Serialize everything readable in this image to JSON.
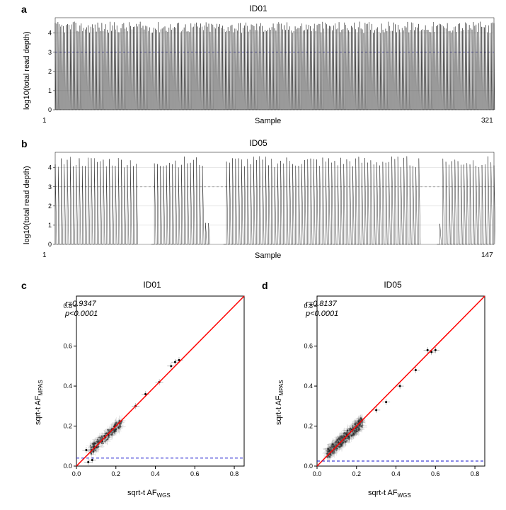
{
  "panel_a": {
    "label": "a",
    "title": "ID01",
    "ylabel": "log10(total read depth)",
    "xlabel": "Sample",
    "x_start": "1",
    "x_end": "321",
    "ylim": [
      0,
      4.8
    ],
    "yticks": [
      "0",
      "1",
      "2",
      "3",
      "4"
    ],
    "n_samples": 321,
    "hline_y": 3,
    "hline_color": "#4040c0",
    "hline_dash": "3,3",
    "line_color": "#000000",
    "grid_color": "#d0d0d0",
    "background_color": "#ffffff",
    "line_width": 0.4,
    "title_fontsize": 12,
    "label_fontsize": 11,
    "tick_fontsize": 10
  },
  "panel_b": {
    "label": "b",
    "title": "ID05",
    "ylabel": "log10(total read depth)",
    "xlabel": "Sample",
    "x_start": "1",
    "x_end": "147",
    "ylim": [
      0,
      4.8
    ],
    "yticks": [
      "0",
      "1",
      "2",
      "3",
      "4"
    ],
    "n_samples": 147,
    "hline_y": 3,
    "hline_color": "#808080",
    "hline_dash": "3,3",
    "line_color": "#000000",
    "grid_color": "#d0d0d0",
    "background_color": "#ffffff",
    "line_width": 0.4,
    "gaps": [
      [
        28,
        32
      ],
      [
        52,
        56
      ],
      [
        122,
        127
      ]
    ],
    "low_regions": [
      [
        50,
        54
      ],
      [
        123,
        128
      ]
    ]
  },
  "panel_c": {
    "label": "c",
    "title": "ID01",
    "xlabel": "sqrt-t AF",
    "xlabel_sub": "WGS",
    "ylabel": "sqrt-t AF",
    "ylabel_sub": "MPAS",
    "r_text": "r=0.9347",
    "p_text": "p<0.0001",
    "xlim": [
      0,
      0.85
    ],
    "ylim": [
      0,
      0.85
    ],
    "ticks": [
      "0.0",
      "0.2",
      "0.4",
      "0.6",
      "0.8"
    ],
    "diag_color": "#ff0000",
    "diag_width": 1.5,
    "hline_y": 0.04,
    "hline_color": "#2020d0",
    "hline_dash": "4,3",
    "hline_width": 1.2,
    "point_color": "#000000",
    "point_opacity": 0.5,
    "error_color": "#808080",
    "background_color": "#ffffff",
    "border_color": "#000000",
    "n_points": 180,
    "cluster_center": [
      0.15,
      0.15
    ],
    "cluster_spread": 0.08,
    "outliers": [
      [
        0.5,
        0.52
      ],
      [
        0.52,
        0.53
      ],
      [
        0.48,
        0.5
      ],
      [
        0.42,
        0.42
      ],
      [
        0.35,
        0.36
      ],
      [
        0.3,
        0.3
      ],
      [
        0.05,
        0.08
      ],
      [
        0.06,
        0.02
      ],
      [
        0.08,
        0.03
      ]
    ]
  },
  "panel_d": {
    "label": "d",
    "title": "ID05",
    "xlabel": "sqrt-t AF",
    "xlabel_sub": "WGS",
    "ylabel": "sqrt-t AF",
    "ylabel_sub": "MPAS",
    "r_text": "r=0.8137",
    "p_text": "p<0.0001",
    "xlim": [
      0,
      0.85
    ],
    "ylim": [
      0,
      0.85
    ],
    "ticks": [
      "0.0",
      "0.2",
      "0.4",
      "0.6",
      "0.8"
    ],
    "diag_color": "#ff0000",
    "diag_width": 1.5,
    "hline_y": 0.025,
    "hline_color": "#2020d0",
    "hline_dash": "4,3",
    "hline_width": 1.2,
    "point_color": "#000000",
    "point_opacity": 0.4,
    "error_color": "#808080",
    "background_color": "#ffffff",
    "border_color": "#000000",
    "n_points": 400,
    "cluster_center": [
      0.14,
      0.14
    ],
    "cluster_spread": 0.09,
    "outliers": [
      [
        0.56,
        0.58
      ],
      [
        0.58,
        0.57
      ],
      [
        0.6,
        0.58
      ],
      [
        0.5,
        0.48
      ],
      [
        0.42,
        0.4
      ],
      [
        0.35,
        0.32
      ],
      [
        0.3,
        0.28
      ]
    ]
  }
}
